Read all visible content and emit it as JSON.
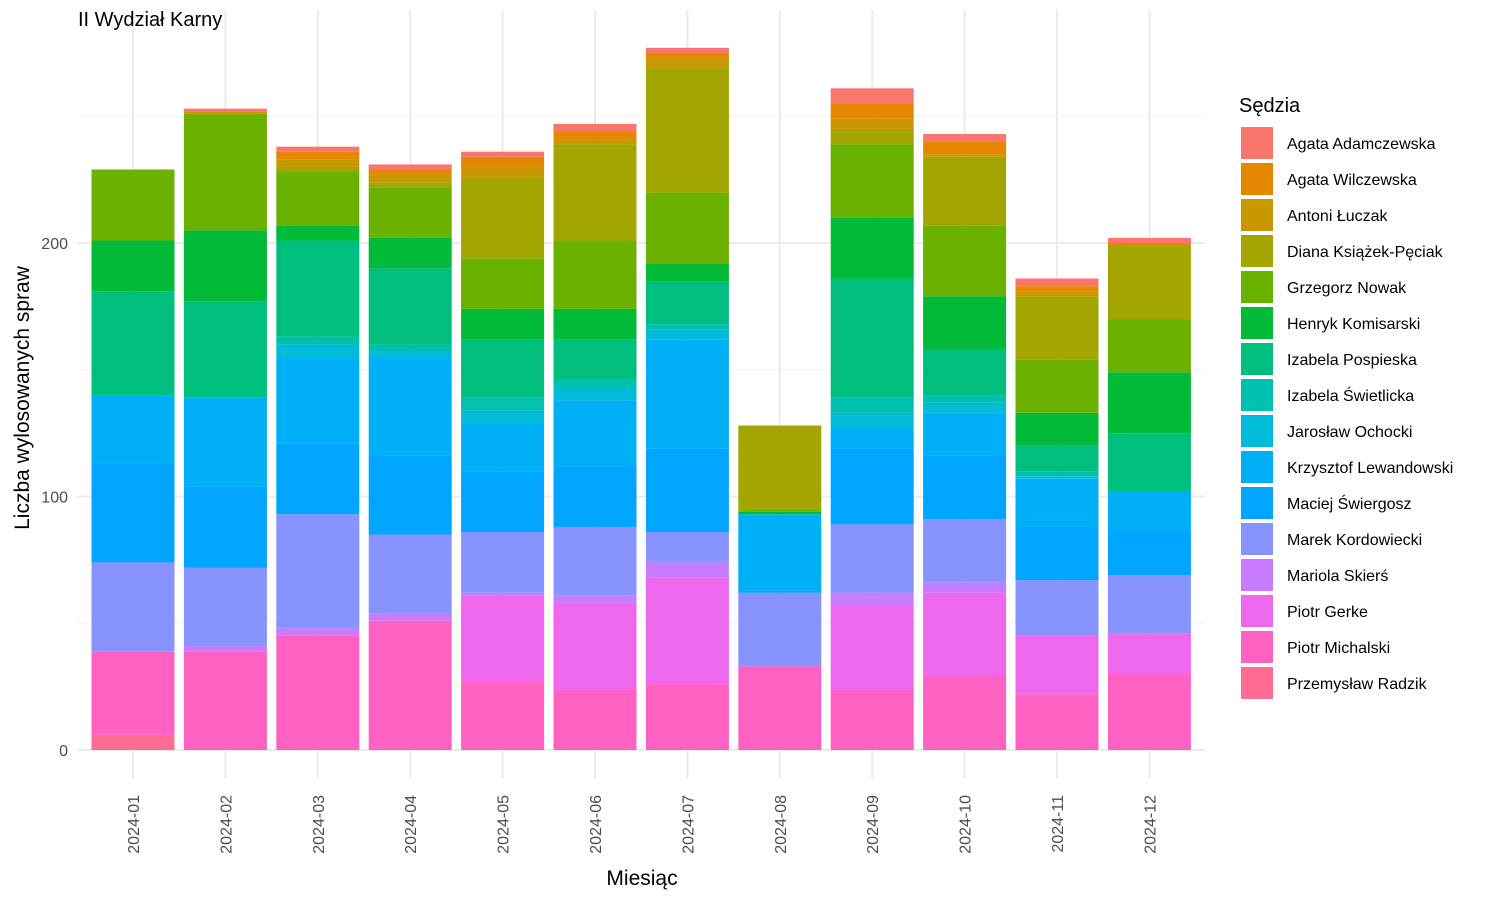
{
  "chart_data": {
    "type": "bar",
    "stacked": true,
    "title": "II Wydział Karny",
    "xlabel": "Miesiąc",
    "ylabel": "Liczba wylosowanych spraw",
    "ylim": [
      0,
      290
    ],
    "yticks": [
      0,
      100,
      200
    ],
    "grid": true,
    "legend_title": "Sędzia",
    "legend_position": "right",
    "categories": [
      "2024-01",
      "2024-02",
      "2024-03",
      "2024-04",
      "2024-05",
      "2024-06",
      "2024-07",
      "2024-08",
      "2024-09",
      "2024-10",
      "2024-11",
      "2024-12"
    ],
    "series": [
      {
        "name": "Agata Adamczewska",
        "color": "#F8766D",
        "values": [
          0,
          1,
          2,
          2,
          2,
          3,
          2,
          0,
          6,
          3,
          3,
          2
        ]
      },
      {
        "name": "Agata Wilczewska",
        "color": "#E58700",
        "values": [
          0,
          1,
          3,
          2,
          4,
          3,
          2,
          0,
          6,
          5,
          2,
          1
        ]
      },
      {
        "name": "Antoni Łuczak",
        "color": "#C99800",
        "values": [
          0,
          0,
          3,
          3,
          4,
          2,
          4,
          0,
          4,
          1,
          2,
          0
        ]
      },
      {
        "name": "Diana Książek-Pęciak",
        "color": "#A3A500",
        "values": [
          0,
          0,
          2,
          2,
          32,
          38,
          49,
          33,
          6,
          27,
          25,
          29
        ]
      },
      {
        "name": "Grzegorz Nowak",
        "color": "#6BB100",
        "values": [
          28,
          46,
          21,
          20,
          20,
          27,
          28,
          1,
          29,
          28,
          21,
          21
        ]
      },
      {
        "name": "Henryk Komisarski",
        "color": "#00BA38",
        "values": [
          20,
          28,
          6,
          12,
          12,
          12,
          7,
          1,
          24,
          21,
          13,
          24
        ]
      },
      {
        "name": "Izabela Pospieska",
        "color": "#00BF7D",
        "values": [
          41,
          38,
          38,
          30,
          23,
          16,
          17,
          0,
          47,
          18,
          10,
          23
        ]
      },
      {
        "name": "Izabela Świetlicka",
        "color": "#00C0AF",
        "values": [
          0,
          0,
          3,
          3,
          5,
          3,
          2,
          0,
          6,
          3,
          2,
          0
        ]
      },
      {
        "name": "Jarosław Ochocki",
        "color": "#00BCD8",
        "values": [
          0,
          0,
          5,
          2,
          5,
          5,
          4,
          0,
          6,
          4,
          1,
          0
        ]
      },
      {
        "name": "Krzysztof Lewandowski",
        "color": "#00B0F6",
        "values": [
          27,
          35,
          34,
          39,
          19,
          26,
          43,
          30,
          8,
          17,
          19,
          16
        ]
      },
      {
        "name": "Maciej Świergosz",
        "color": "#00A5FF",
        "values": [
          39,
          32,
          28,
          31,
          24,
          24,
          33,
          1,
          30,
          25,
          21,
          17
        ]
      },
      {
        "name": "Marek Kordowiecki",
        "color": "#8794FF",
        "values": [
          35,
          31,
          45,
          31,
          24,
          27,
          12,
          29,
          27,
          25,
          22,
          23
        ]
      },
      {
        "name": "Mariola Skierś",
        "color": "#C77CFF",
        "values": [
          0,
          2,
          3,
          3,
          1,
          3,
          6,
          0,
          5,
          4,
          0,
          0
        ]
      },
      {
        "name": "Piotr Gerke",
        "color": "#ED68ED",
        "values": [
          0,
          0,
          0,
          0,
          34,
          34,
          42,
          0,
          33,
          33,
          23,
          16
        ]
      },
      {
        "name": "Piotr Michalski",
        "color": "#FF61C3",
        "values": [
          33,
          39,
          45,
          51,
          27,
          24,
          26,
          33,
          24,
          29,
          22,
          30
        ]
      },
      {
        "name": "Przemysław Radzik",
        "color": "#FF6C91",
        "values": [
          6,
          0,
          0,
          0,
          0,
          0,
          0,
          0,
          0,
          0,
          0,
          0
        ]
      }
    ]
  }
}
